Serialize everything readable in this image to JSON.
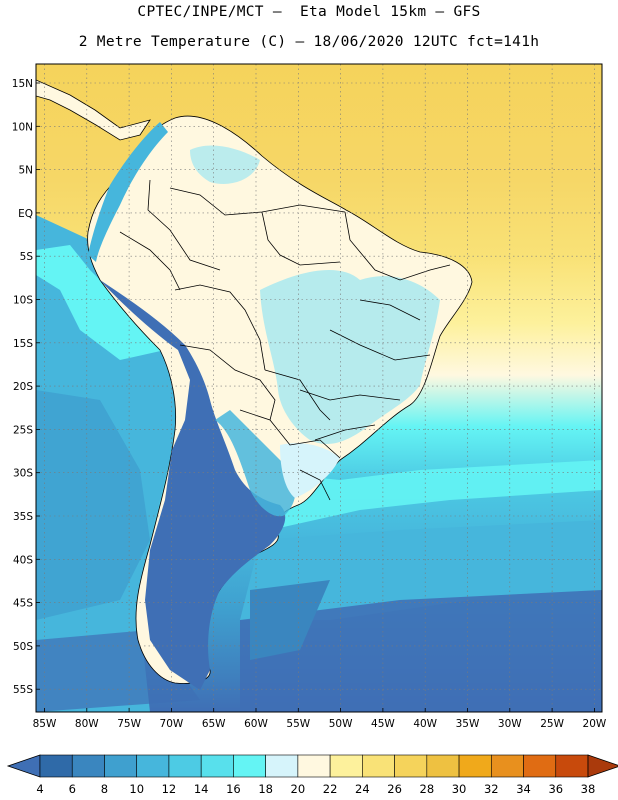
{
  "header": {
    "line1": "CPTEC/INPE/MCT –  Eta Model 15km – GFS",
    "line2": "2 Metre Temperature (C) – 18/06/2020 12UTC fct=141h"
  },
  "axes": {
    "lat_labels": [
      "15N",
      "10N",
      "5N",
      "EQ",
      "5S",
      "10S",
      "15S",
      "20S",
      "25S",
      "30S",
      "35S",
      "40S",
      "45S",
      "50S",
      "55S"
    ],
    "lon_labels": [
      "85W",
      "80W",
      "75W",
      "70W",
      "65W",
      "60W",
      "55W",
      "50W",
      "45W",
      "40W",
      "35W",
      "30W",
      "25W",
      "20W"
    ]
  },
  "colorbar": {
    "ticks": [
      "4",
      "6",
      "8",
      "10",
      "12",
      "14",
      "16",
      "18",
      "20",
      "22",
      "24",
      "26",
      "28",
      "30",
      "32",
      "34",
      "36",
      "38"
    ],
    "colors": [
      "#3f6fb5",
      "#2f6aa8",
      "#3a86bf",
      "#3fa0cf",
      "#46b6dc",
      "#4dcbe4",
      "#58e0ec",
      "#64f4f4",
      "#d6f4fb",
      "#fff8e0",
      "#fdf19c",
      "#f9e277",
      "#f5d35b",
      "#eec141",
      "#f0a91b",
      "#e8901e",
      "#e06c13",
      "#c84a0c",
      "#aa3a0c"
    ]
  },
  "map": {
    "palette": {
      "ocean_cold": "#3f6fb5",
      "ocean_mid": "#46b6dc",
      "ocean_cyan": "#64f4f4",
      "ocean_warm": "#f5d35b",
      "land_cold": "#2f6aa8",
      "land_mild": "#fff8e0",
      "land_cool": "#9ee7f2"
    }
  }
}
